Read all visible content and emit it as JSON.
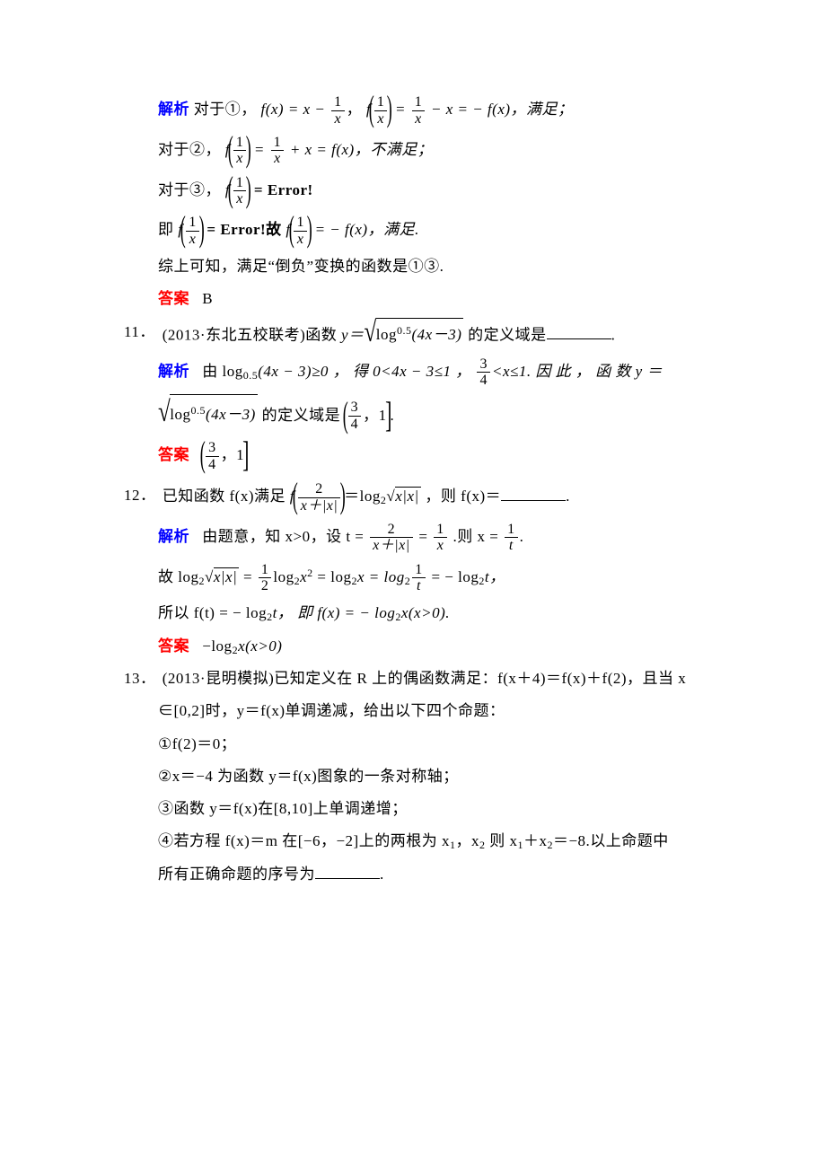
{
  "colors": {
    "blue": "#0000ff",
    "red": "#ff0000",
    "text": "#000000",
    "bg": "#ffffff"
  },
  "typography": {
    "body_fontsize": 17,
    "sub_fontsize": 12,
    "line_height": 1.9
  },
  "labels": {
    "jiexi": "解析",
    "daan": "答案"
  },
  "block10": {
    "line1_a": "对于①，",
    "line1_fx_eq": "f(x) = x −",
    "line1_f_open": "f",
    "line1_after_f": " =",
    "line1_tail": "− x = − f(x)，满足；",
    "line2_a": "对于②，",
    "line2_f_open": "f",
    "line2_mid": " =",
    "line2_tail": "+ x = f(x)，不满足；",
    "line3_a": "对于③，",
    "line3_f_open": "f",
    "line3_tail": " = Error!",
    "line4_a": "即 ",
    "line4_f_open": "f",
    "line4_mid": " = Error!故 ",
    "line4_f2_open": "f",
    "line4_tail": " = − f(x)，满足.",
    "line5": "综上可知，满足“倒负”变换的函数是①③.",
    "ans": "B",
    "one_over_x_num": "1",
    "one_over_x_den": "x"
  },
  "q11": {
    "num": "11．",
    "stem_a": "(2013·东北五校联考)函数 ",
    "y_eq": "y＝",
    "under_sqrt_a": "log",
    "under_sqrt_sup": "0.5",
    "under_sqrt_b": "(4x－3)",
    "stem_b": "的定义域是",
    "jiexi_a": "由 log",
    "jiexi_sub1": "0.5",
    "jiexi_b": "(4x − 3)≥0 ， 得 0<4x − 3≤1 ，",
    "frac34_num": "3",
    "frac34_den": "4",
    "jiexi_c": "<x≤1. 因 此 ， 函 数  y ＝",
    "jiexi_d": "的定义域是",
    "interval_a": "，1",
    "ans_label": ""
  },
  "q12": {
    "num": "12．",
    "stem_a": "已知函数 f(x)满足 ",
    "f_open": "f",
    "inner_num": "2",
    "inner_den": "x＋|x|",
    "eq": "＝log",
    "sub2": "2",
    "sqrt_arg": "x|x|",
    "stem_b": "，则 f(x)＝",
    "jx_a": "由题意，知 x>0，设 t =",
    "t_num": "2",
    "t_den": "x＋|x|",
    "eq2": " =",
    "onex_num": "1",
    "onex_den": "x",
    "jx_b": ".则 x =",
    "onet_num": "1",
    "onet_den": "t",
    "jx_c": "故 log",
    "jx_c2": " =",
    "half_num": "1",
    "half_den": "2",
    "jx_c3": "log",
    "jx_c4": "x",
    "jx_c4sup": "2",
    "jx_c5": " = log",
    "jx_c6": "x = log",
    "jx_c7": " = − log",
    "jx_c8": "t，",
    "jx_d": "所以 f(t) = − log",
    "jx_d2": "t，  即 f(x) = − log",
    "jx_d3": "x(x>0).",
    "ans": "−log",
    "ans_sub": "2",
    "ans_tail": "x(x>0)"
  },
  "q13": {
    "num": "13．",
    "l1": "(2013·昆明模拟)已知定义在 R 上的偶函数满足：f(x＋4)＝f(x)＋f(2)，且当 x",
    "l2": "∈[0,2]时，y＝f(x)单调递减，给出以下四个命题：",
    "p1": "①f(2)＝0；",
    "p2": "②x＝−4 为函数 y＝f(x)图象的一条对称轴；",
    "p3": "③函数 y＝f(x)在[8,10]上单调递增；",
    "p4a": "④若方程 f(x)＝m 在[−6，−2]上的两根为 x",
    "p4sub1": "1",
    "p4b": "，x",
    "p4sub2": "2",
    "p4c": " 则 x",
    "p4d": "＋x",
    "p4e": "＝−8.以上命题中",
    "p5": "所有正确命题的序号为"
  }
}
